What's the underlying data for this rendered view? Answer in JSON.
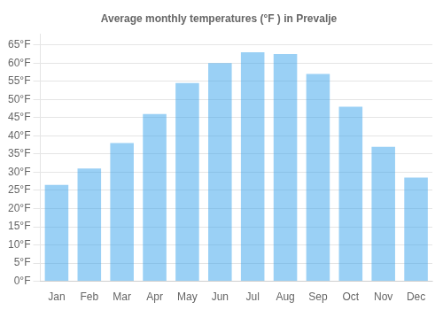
{
  "chart_data": {
    "type": "bar",
    "title": "Average monthly temperatures (°F ) in Prevalje",
    "categories": [
      "Jan",
      "Feb",
      "Mar",
      "Apr",
      "May",
      "Jun",
      "Jul",
      "Aug",
      "Sep",
      "Oct",
      "Nov",
      "Dec"
    ],
    "values": [
      26.5,
      31.0,
      38.0,
      46.0,
      54.5,
      60.0,
      63.0,
      62.5,
      57.0,
      48.0,
      37.0,
      28.5
    ],
    "ylim": [
      0,
      68
    ],
    "yticks": [
      {
        "value": 0,
        "label": "0°F"
      },
      {
        "value": 5,
        "label": "5°F"
      },
      {
        "value": 10,
        "label": "10°F"
      },
      {
        "value": 15,
        "label": "15°F"
      },
      {
        "value": 20,
        "label": "20°F"
      },
      {
        "value": 25,
        "label": "25°F"
      },
      {
        "value": 30,
        "label": "30°F"
      },
      {
        "value": 35,
        "label": "35°F"
      },
      {
        "value": 40,
        "label": "40°F"
      },
      {
        "value": 45,
        "label": "45°F"
      },
      {
        "value": 50,
        "label": "50°F"
      },
      {
        "value": 55,
        "label": "55°F"
      },
      {
        "value": 60,
        "label": "60°F"
      },
      {
        "value": 65,
        "label": "65°F"
      }
    ],
    "grid": true
  }
}
